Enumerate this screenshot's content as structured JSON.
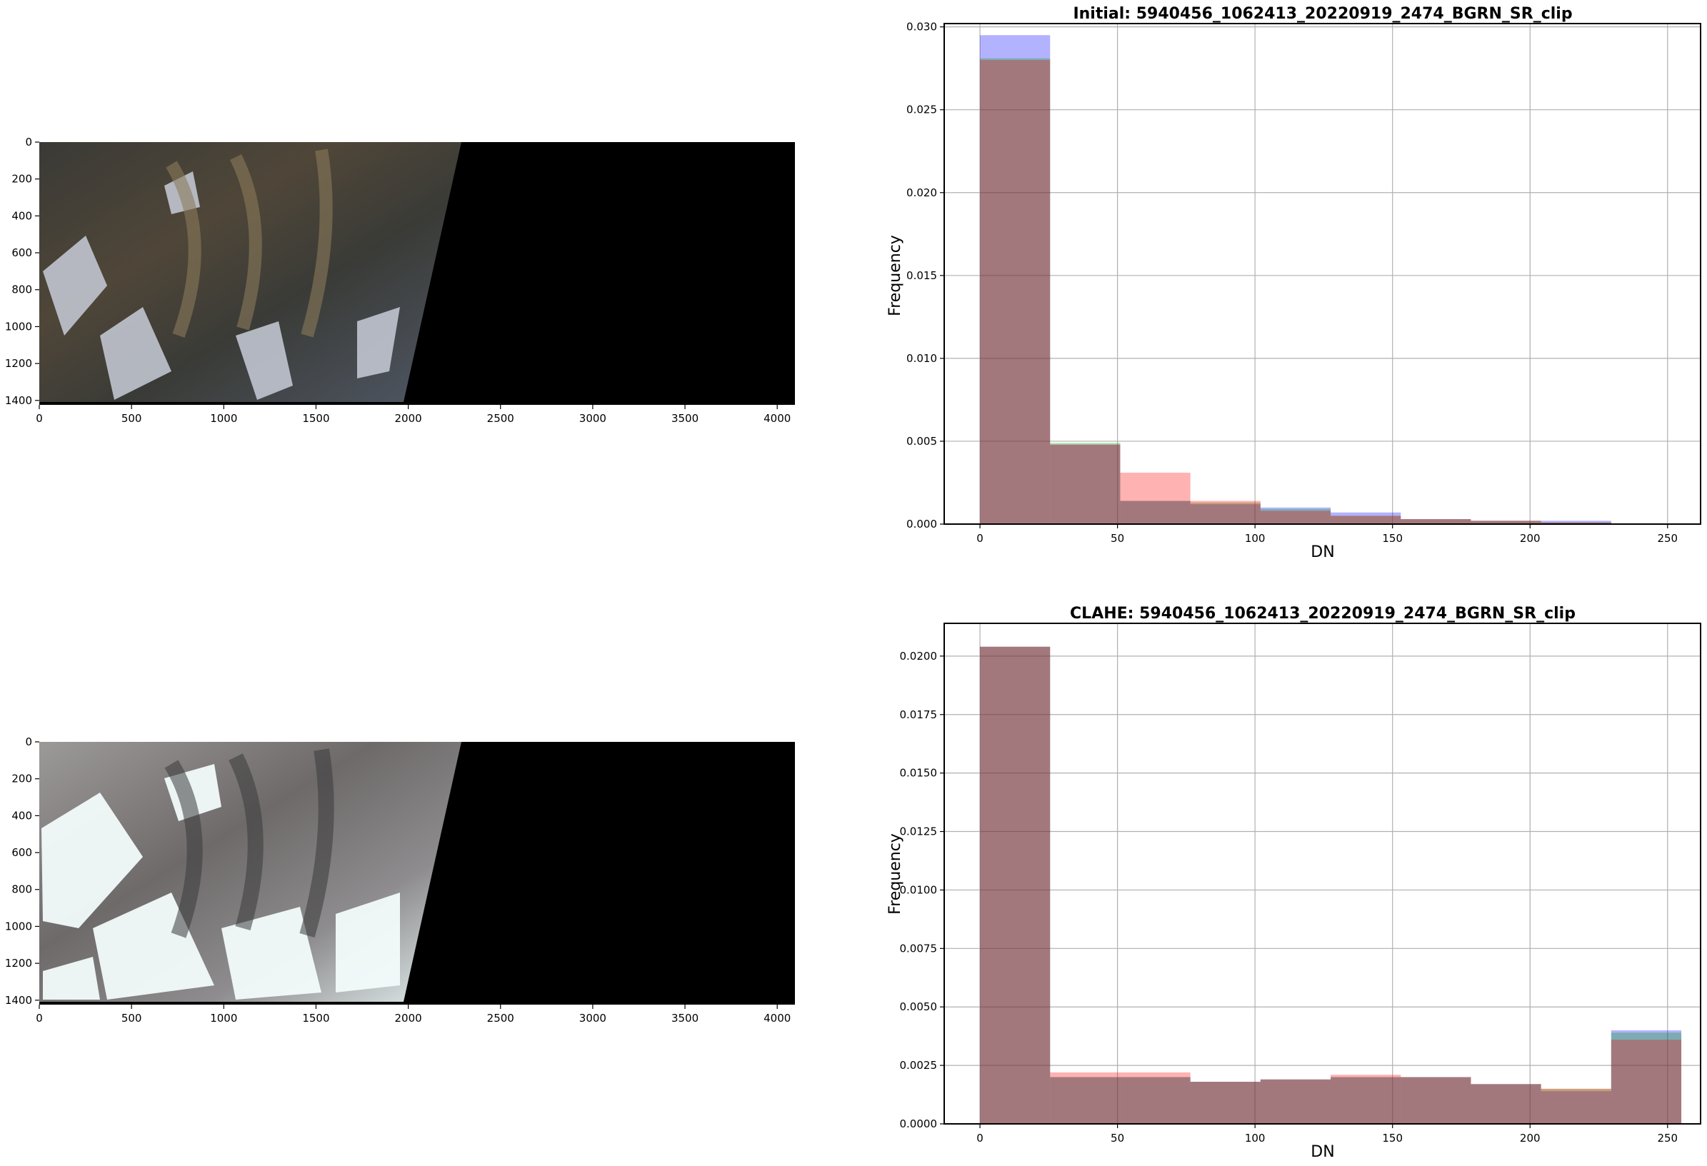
{
  "figure": {
    "image_panels": [
      {
        "name": "initial-image",
        "x_ticks": [
          "0",
          "500",
          "1000",
          "1500",
          "2000",
          "2500",
          "3000",
          "3500",
          "4000"
        ],
        "y_ticks": [
          "0",
          "200",
          "400",
          "600",
          "800",
          "1000",
          "1200",
          "1400"
        ],
        "tone": "dark"
      },
      {
        "name": "clahe-image",
        "x_ticks": [
          "0",
          "500",
          "1000",
          "1500",
          "2000",
          "2500",
          "3000",
          "3500",
          "4000"
        ],
        "y_ticks": [
          "0",
          "200",
          "400",
          "600",
          "800",
          "1000",
          "1200",
          "1400"
        ],
        "tone": "bright"
      }
    ]
  },
  "colors": {
    "blue": "#0000ff",
    "green": "#00a000",
    "red": "#ff0000",
    "overlap": "#a2737a"
  },
  "chart_data": [
    {
      "type": "bar",
      "title": "Initial: 5940456_1062413_20220919_2474_BGRN_SR_clip",
      "xlabel": "DN",
      "ylabel": "Frequency",
      "xlim": [
        -13,
        262
      ],
      "ylim": [
        0,
        0.0302
      ],
      "x_ticks": [
        "0",
        "50",
        "100",
        "150",
        "200",
        "250"
      ],
      "y_ticks": [
        "0.000",
        "0.005",
        "0.010",
        "0.015",
        "0.020",
        "0.025",
        "0.030"
      ],
      "grid": true,
      "bin_edges": [
        0,
        25.5,
        51,
        76.5,
        102,
        127.5,
        153,
        178.5,
        204,
        229.5,
        255
      ],
      "series": [
        {
          "color": "blue",
          "values": [
            0.0295,
            0.0048,
            0.0014,
            0.0012,
            0.001,
            0.0007,
            0.0003,
            0.0002,
            0.0002,
            0.0
          ]
        },
        {
          "color": "green",
          "values": [
            0.0281,
            0.0049,
            0.0014,
            0.0013,
            0.0009,
            0.0005,
            0.0003,
            0.0002,
            0.0001,
            0.0
          ]
        },
        {
          "color": "red",
          "values": [
            0.028,
            0.0048,
            0.0031,
            0.0014,
            0.0008,
            0.0005,
            0.0003,
            0.0002,
            0.0001,
            0.0
          ]
        }
      ]
    },
    {
      "type": "bar",
      "title": "CLAHE: 5940456_1062413_20220919_2474_BGRN_SR_clip",
      "xlabel": "DN",
      "ylabel": "Frequency",
      "xlim": [
        -13,
        262
      ],
      "ylim": [
        0,
        0.0214
      ],
      "x_ticks": [
        "0",
        "50",
        "100",
        "150",
        "200",
        "250"
      ],
      "y_ticks": [
        "0.0000",
        "0.0025",
        "0.0050",
        "0.0075",
        "0.0100",
        "0.0125",
        "0.0150",
        "0.0175",
        "0.0200"
      ],
      "grid": true,
      "bin_edges": [
        0,
        25.5,
        51,
        76.5,
        102,
        127.5,
        153,
        178.5,
        204,
        229.5,
        255
      ],
      "series": [
        {
          "color": "blue",
          "values": [
            0.0204,
            0.002,
            0.002,
            0.0018,
            0.0019,
            0.002,
            0.002,
            0.0017,
            0.0014,
            0.004
          ]
        },
        {
          "color": "green",
          "values": [
            0.0204,
            0.002,
            0.002,
            0.0018,
            0.0019,
            0.002,
            0.002,
            0.0017,
            0.0015,
            0.0039
          ]
        },
        {
          "color": "red",
          "values": [
            0.0204,
            0.0022,
            0.0022,
            0.0018,
            0.0019,
            0.0021,
            0.002,
            0.0017,
            0.0015,
            0.0036
          ]
        }
      ]
    }
  ]
}
